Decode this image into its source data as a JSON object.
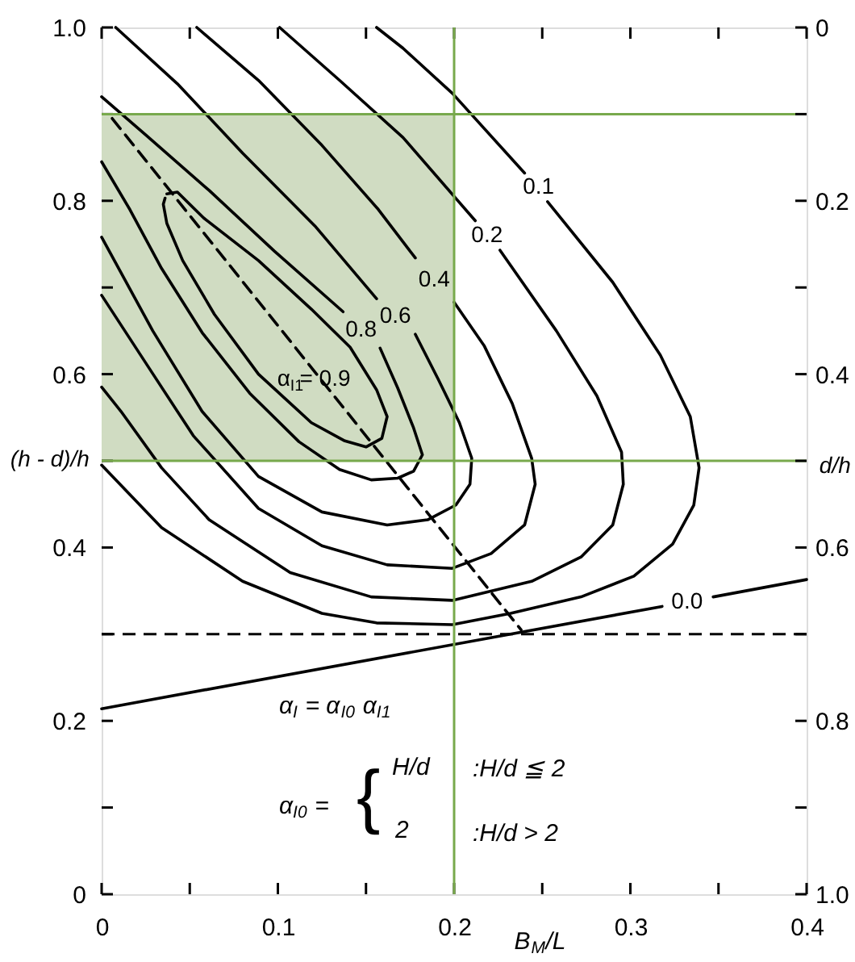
{
  "chart_data": {
    "type": "line",
    "xlabel": "B$_{M}$/L",
    "ylabel": "(h - d)/h",
    "y2label": "d/h",
    "xlim": [
      0,
      0.4
    ],
    "ylim": [
      0,
      1
    ],
    "y2lim": [
      1,
      0
    ],
    "xticks": [
      0,
      {
        "value": 0.05,
        "label": null
      },
      0.1,
      {
        "value": 0.15,
        "label": null
      },
      0.2,
      {
        "value": 0.25,
        "label": null
      },
      0.3,
      {
        "value": 0.35,
        "label": null
      },
      0.4
    ],
    "yticks": [
      0,
      {
        "value": 0.1,
        "label": null
      },
      0.2,
      {
        "value": 0.3,
        "label": null
      },
      0.4,
      {
        "value": 0.5,
        "label": null
      },
      0.6,
      {
        "value": 0.7,
        "label": null
      },
      0.8,
      {
        "value": 0.9,
        "label": null
      },
      {
        "value": 1,
        "label": "1.0"
      }
    ],
    "y2ticks": [
      0,
      {
        "value": 0.1,
        "label": null
      },
      0.2,
      {
        "value": 0.3,
        "label": null
      },
      0.4,
      {
        "value": 0.5,
        "label": null
      },
      0.6,
      {
        "value": 0.7,
        "label": null
      },
      0.8,
      {
        "value": 0.9,
        "label": null
      },
      {
        "value": 1,
        "label": "1.0"
      }
    ],
    "line_style": "solid",
    "series": [
      {
        "name": "0.1",
        "color": "#000000",
        "x": [
          0.156,
          0.171,
          0.199,
          0.24,
          0.246,
          0.253,
          0.29,
          0.317,
          0.334,
          0.339,
          0.336,
          0.324,
          0.302,
          0.272,
          0.232,
          0.199,
          0.156,
          0.125,
          0.08,
          0.034,
          0
        ],
        "values": [
          1.0,
          0.976,
          0.924,
          0.832,
          null,
          0.799,
          0.706,
          0.622,
          0.551,
          0.492,
          0.449,
          0.404,
          0.367,
          0.343,
          0.324,
          0.311,
          0.313,
          0.324,
          0.361,
          0.423,
          0.495
        ]
      },
      {
        "name": "0.2",
        "color": "#000000",
        "x": [
          0.101,
          0.135,
          0.171,
          0.212,
          0.219,
          0.226,
          0.258,
          0.281,
          0.295,
          0.296,
          0.29,
          0.272,
          0.244,
          0.199,
          0.153,
          0.107,
          0.061,
          0.034,
          0.011,
          0
        ],
        "values": [
          1.0,
          0.939,
          0.873,
          0.777,
          null,
          0.743,
          0.65,
          0.575,
          0.51,
          0.473,
          0.426,
          0.389,
          0.361,
          0.339,
          0.343,
          0.371,
          0.432,
          0.492,
          0.557,
          0.585
        ]
      },
      {
        "name": "0.4",
        "color": "#000000",
        "x": [
          0.054,
          0.089,
          0.125,
          0.157,
          0.178,
          0.189,
          0.2,
          0.217,
          0.233,
          0.244,
          0.246,
          0.24,
          0.221,
          0.199,
          0.162,
          0.125,
          0.089,
          0.052,
          0.025,
          0
        ],
        "values": [
          1.0,
          0.939,
          0.864,
          0.79,
          0.734,
          null,
          0.683,
          0.633,
          0.566,
          0.503,
          0.473,
          0.426,
          0.393,
          0.376,
          0.38,
          0.402,
          0.445,
          0.529,
          0.613,
          0.691
        ]
      },
      {
        "name": "0.6",
        "color": "#000000",
        "x": [
          0.008,
          0.043,
          0.08,
          0.121,
          0.156,
          0.167,
          0.178,
          0.191,
          0.203,
          0.21,
          0.209,
          0.201,
          0.185,
          0.162,
          0.125,
          0.089,
          0.057,
          0.029,
          0
        ],
        "values": [
          1.0,
          0.935,
          0.855,
          0.771,
          0.687,
          null,
          0.646,
          0.594,
          0.544,
          0.503,
          0.473,
          0.449,
          0.432,
          0.426,
          0.441,
          0.482,
          0.557,
          0.65,
          0.758
        ]
      },
      {
        "name": "0.8",
        "color": "#000000",
        "x": [
          0,
          0.025,
          0.061,
          0.098,
          0.137,
          0.148,
          0.158,
          0.168,
          0.177,
          0.182,
          0.177,
          0.168,
          0.153,
          0.135,
          0.112,
          0.084,
          0.057,
          0.034,
          0.016,
          0
        ],
        "values": [
          0.92,
          0.876,
          0.812,
          0.742,
          0.672,
          null,
          0.63,
          0.584,
          0.538,
          0.507,
          0.488,
          0.48,
          0.478,
          0.49,
          0.522,
          0.578,
          0.648,
          0.722,
          0.79,
          0.845
        ]
      },
      {
        "color": "#000000",
        "x": [
          0.037,
          0.043,
          0.058,
          0.089,
          0.119,
          0.141,
          0.156,
          0.162,
          0.159,
          0.15,
          0.138,
          0.119,
          0.089,
          0.064,
          0.046,
          0.037,
          0.035,
          0.036
        ],
        "values": [
          0.808,
          0.81,
          0.78,
          0.731,
          0.675,
          0.631,
          0.582,
          0.551,
          0.526,
          0.516,
          0.523,
          0.544,
          0.6,
          0.669,
          0.731,
          0.774,
          0.796,
          0.803
        ]
      },
      {
        "name": "0.0",
        "color": "#000000",
        "x": [
          0,
          0.318,
          0.332,
          0.347,
          0.4
        ],
        "values": [
          0.214,
          0.332,
          null,
          0.343,
          0.363
        ]
      },
      {
        "color": "#000000",
        "line_style": "dashed",
        "x": [
          0.006,
          0.238
        ],
        "values": [
          0.895,
          0.305
        ]
      },
      {
        "color": "#d0dcc2",
        "x": [
          0,
          0.2
        ],
        "values": [
          null,
          null
        ],
        "lower": [
          0.5,
          0.5
        ],
        "upper": [
          0.9,
          0.9
        ]
      }
    ],
    "ref_lines": [
      {
        "axis": "x",
        "value": 0.2,
        "color": "#78a94c"
      },
      {
        "axis": "y",
        "value": 0.5,
        "color": "#78a94c"
      },
      {
        "axis": "y",
        "value": 0.9,
        "color": "#78a94c"
      },
      {
        "axis": "y",
        "value": 0.3,
        "color": "#000000",
        "line_style": "dashed"
      }
    ],
    "annotations": [
      "α$_{I}$ = α$_{I0}$ α$_{I1}$",
      "α$_{I0}$ =",
      "{",
      "H/d",
      ":H/d ≦ 2",
      "2",
      ":H/d > 2",
      {
        "text": "α$_{I1}$= 0.9",
        "x": 0.121,
        "y": 0.594
      }
    ]
  }
}
